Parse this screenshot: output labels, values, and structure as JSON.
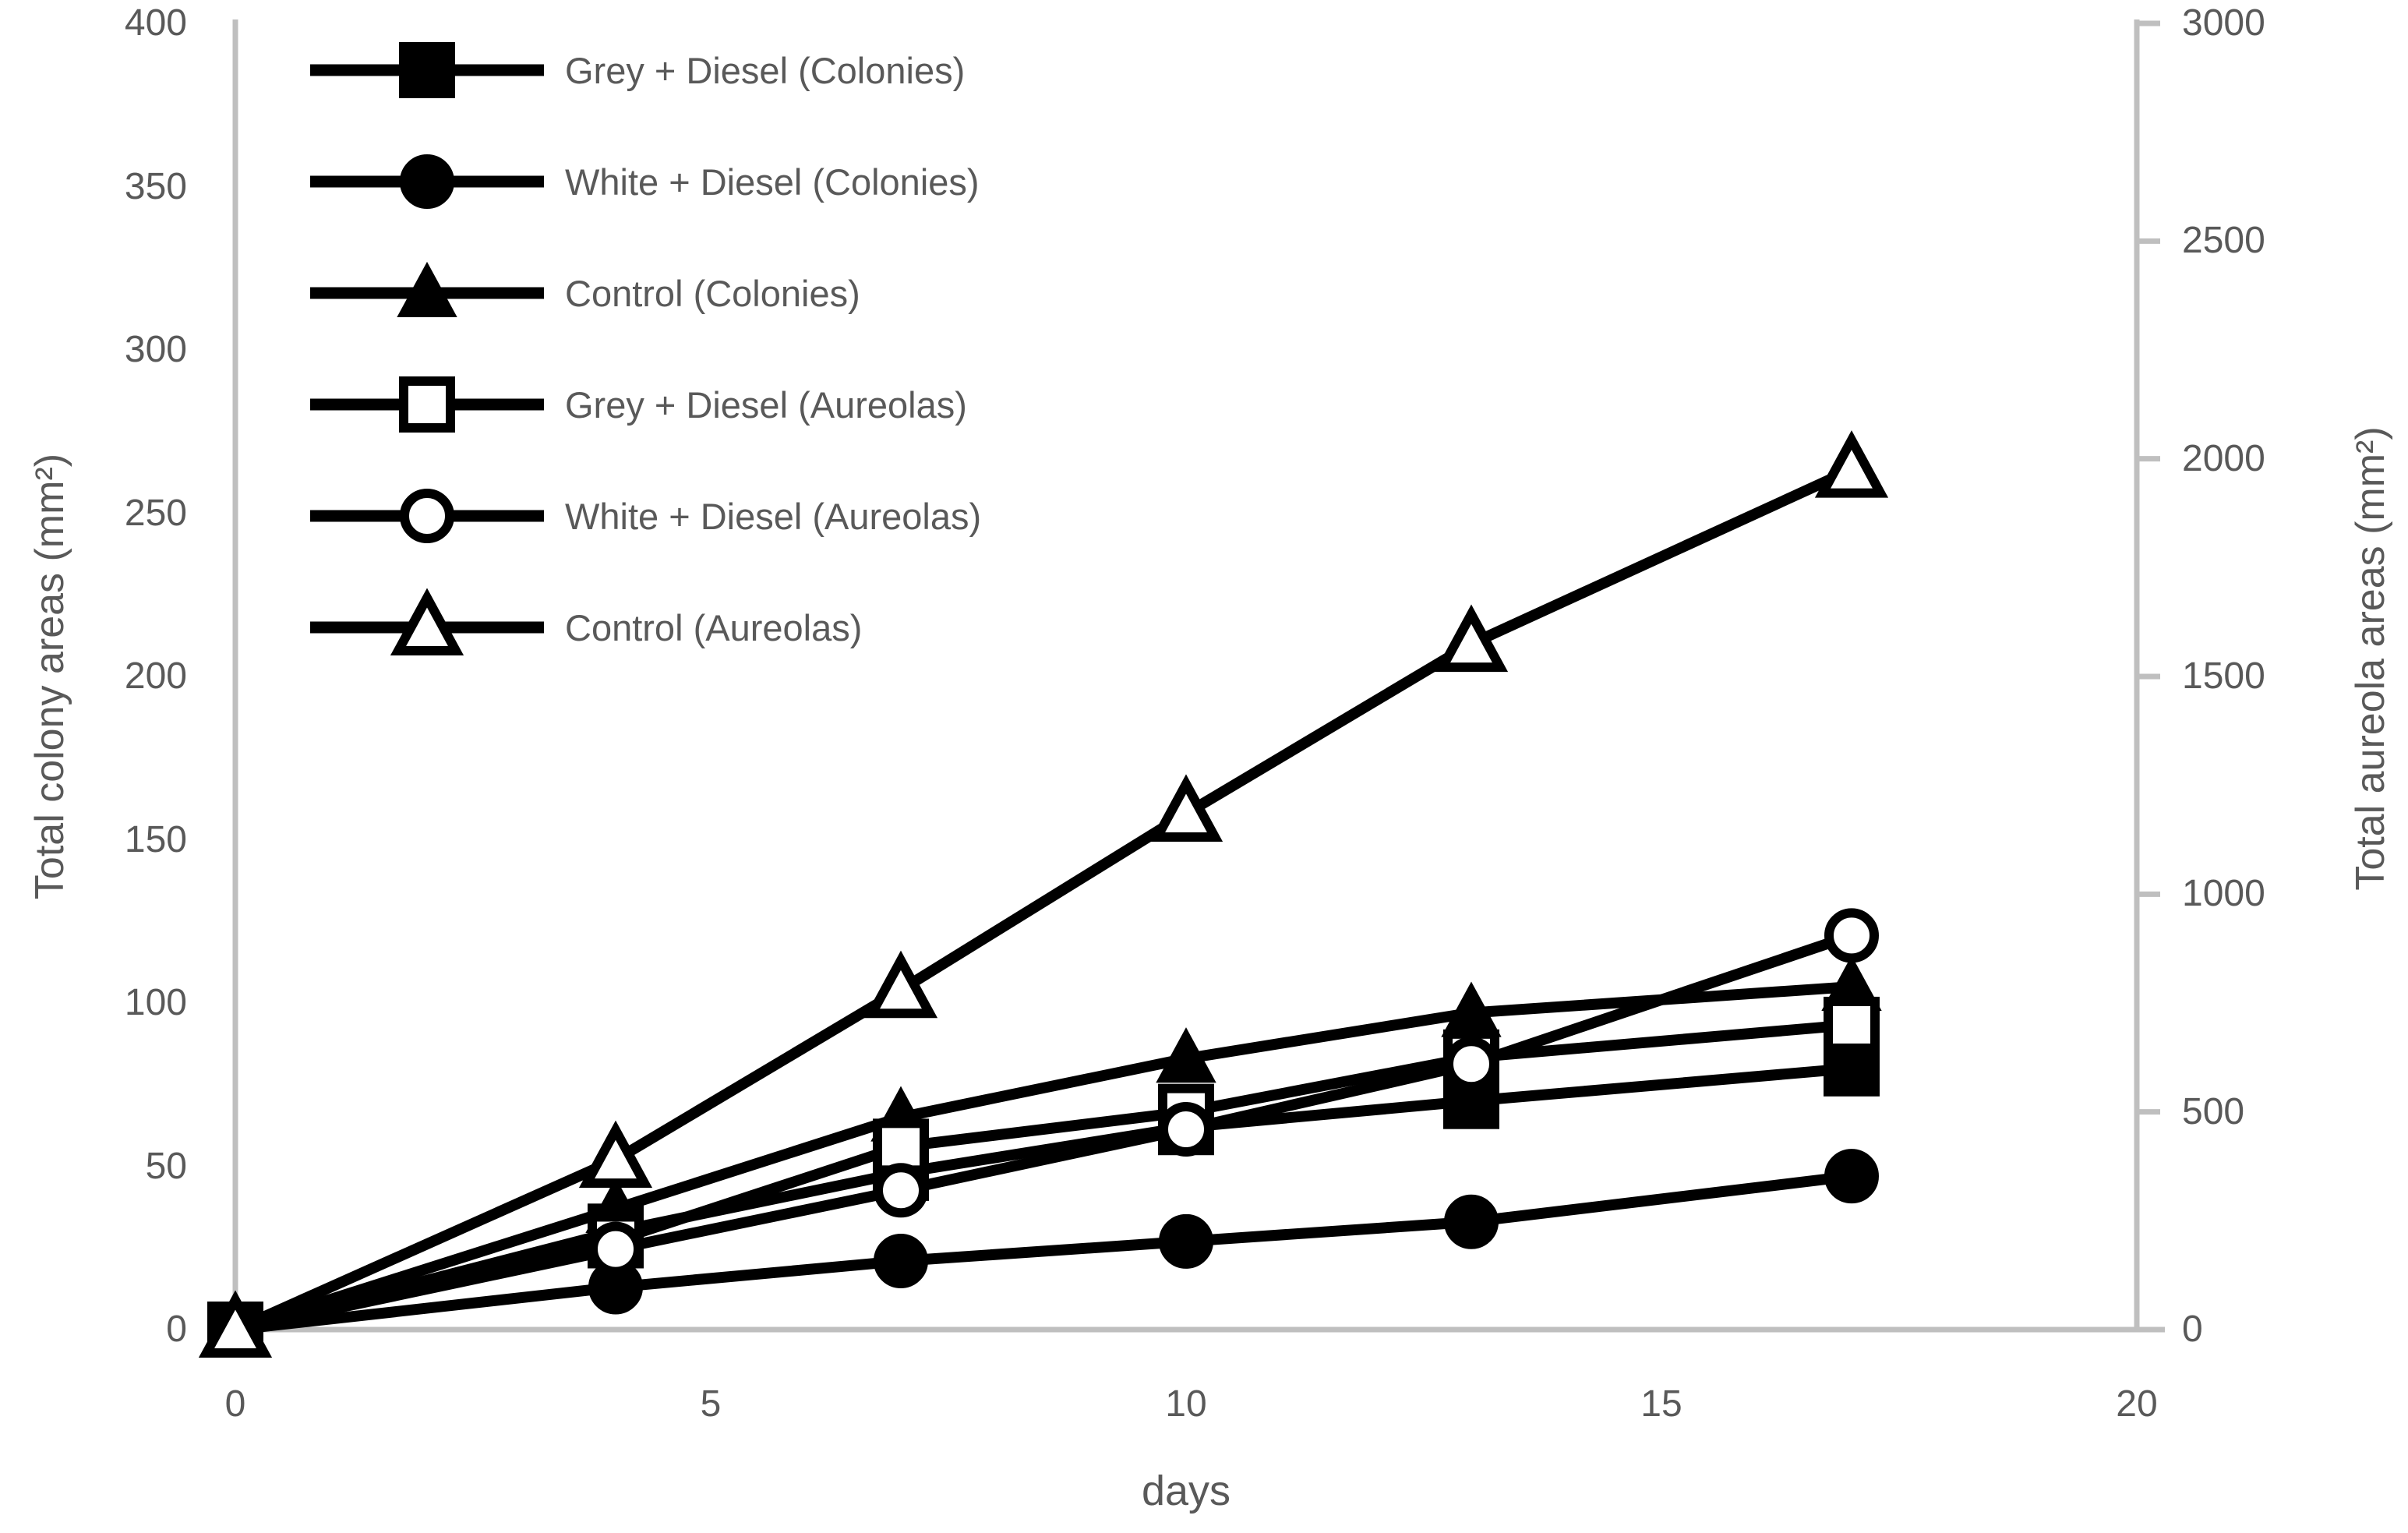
{
  "chart_data": {
    "type": "line",
    "title": "",
    "xlabel": "days",
    "ylabel_left": "Total colony areas (mm²)",
    "ylabel_right": "Total aureola areas (mm²)",
    "x": [
      0,
      4,
      7,
      10,
      13,
      17
    ],
    "x_axis": {
      "min": 0,
      "max": 20,
      "tick_step": 5,
      "tick_labels": [
        "0",
        "5",
        "10",
        "15",
        "20"
      ]
    },
    "y_left_axis": {
      "min": 0,
      "max": 400,
      "tick_step": 50,
      "tick_labels": [
        "0",
        "50",
        "100",
        "150",
        "200",
        "250",
        "300",
        "350",
        "400"
      ]
    },
    "y_right_axis": {
      "min": 0,
      "max": 3000,
      "tick_step": 500,
      "tick_labels": [
        "0",
        "500",
        "1000",
        "1500",
        "2000",
        "2500",
        "3000"
      ]
    },
    "grid": false,
    "legend_position": "top-left",
    "series": [
      {
        "name": "Grey + Diesel (Colonies)",
        "axis": "left",
        "marker": "square",
        "marker_fill": "filled",
        "values": [
          0,
          30,
          48,
          62,
          70,
          80
        ]
      },
      {
        "name": "White + Diesel (Colonies)",
        "axis": "left",
        "marker": "circle",
        "marker_fill": "filled",
        "values": [
          0,
          13,
          21,
          27,
          33,
          47
        ]
      },
      {
        "name": "Control (Colonies)",
        "axis": "left",
        "marker": "triangle",
        "marker_fill": "filled",
        "values": [
          0,
          37,
          65,
          83,
          97,
          105
        ]
      },
      {
        "name": "Grey + Diesel (Aureolas)",
        "axis": "right",
        "marker": "square",
        "marker_fill": "open",
        "values": [
          0,
          205,
          420,
          500,
          625,
          700
        ]
      },
      {
        "name": "White + Diesel (Aureolas)",
        "axis": "right",
        "marker": "circle",
        "marker_fill": "open",
        "values": [
          0,
          185,
          320,
          460,
          610,
          905
        ]
      },
      {
        "name": "Control (Aureolas)",
        "axis": "right",
        "marker": "triangle",
        "marker_fill": "open",
        "values": [
          0,
          390,
          780,
          1185,
          1575,
          1975
        ]
      }
    ],
    "colors": {
      "series": "#000000",
      "text": "#595959",
      "axis_line": "#BFBFBF",
      "background": "#FFFFFF"
    }
  }
}
